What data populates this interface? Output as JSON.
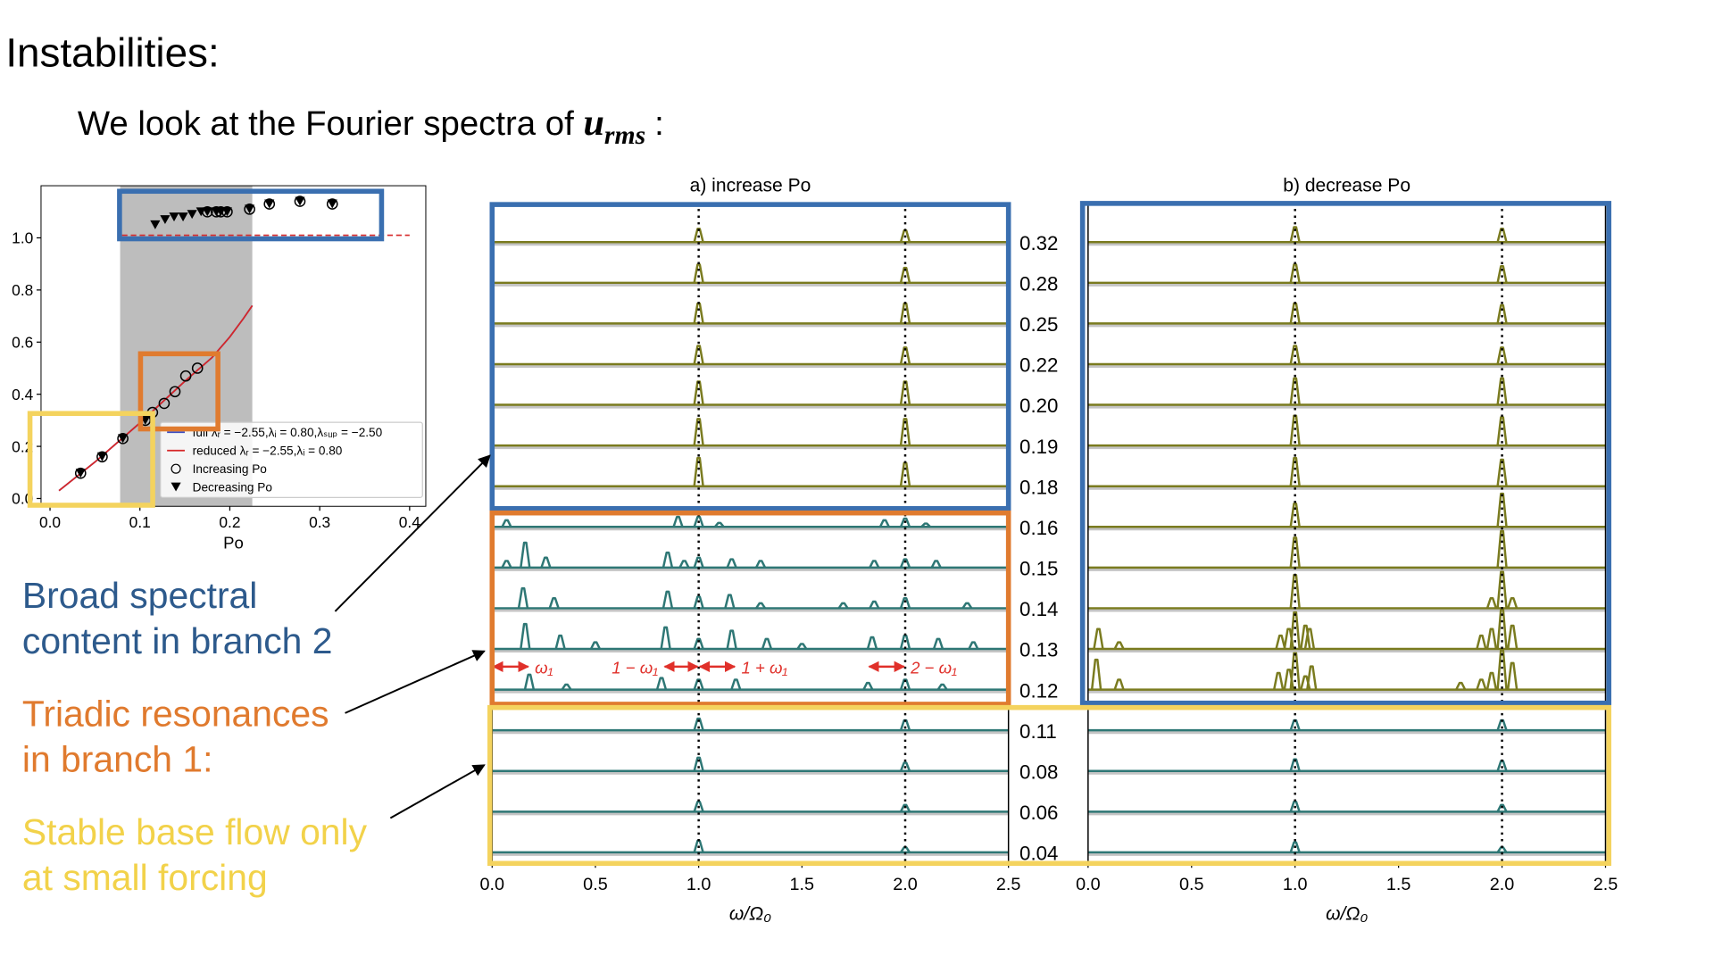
{
  "title": "Instabilities:",
  "subtitle": {
    "text": "We look at the Fourier spectra of",
    "symbol": "u",
    "subscript": "rms",
    "end": ":"
  },
  "notes": [
    {
      "lines": [
        "Broad spectral",
        "content in branch 2"
      ],
      "color": "#2d5a8c"
    },
    {
      "lines": [
        "Triadic resonances",
        "in branch 1:"
      ],
      "color": "#e07a2e"
    },
    {
      "lines": [
        "Stable base flow only",
        "at small forcing"
      ],
      "color": "#f2d24a"
    }
  ],
  "chart_data": [
    {
      "type": "scatter",
      "xlabel": "Po",
      "xlim": [
        -0.01,
        0.418
      ],
      "ylim": [
        -0.03,
        1.2
      ],
      "xticks": [
        {
          "value": 0,
          "label": "0.0"
        },
        0.1,
        0.2,
        0.3,
        0.4
      ],
      "yticks": [
        {
          "value": 0,
          "label": "0.0"
        },
        0.2,
        0.4,
        0.6,
        0.8,
        {
          "value": 1,
          "label": "1.0"
        }
      ],
      "shaded_x": [
        0.078,
        0.225
      ],
      "shade_color": "#bdbdbd",
      "ref_line": {
        "y": 1.01,
        "x": [
          0.08,
          0.4
        ],
        "color": "#d62728"
      },
      "legend": "lower right",
      "series": [
        {
          "name": "full λᵣ = −2.55,λᵢ = 0.80,λₛᵤₚ = −2.50",
          "kind": "line",
          "color": "#3b4cc0",
          "x": [
            0.01,
            0.05,
            0.1,
            0.15,
            0.18,
            0.2,
            0.215,
            0.225
          ],
          "values": [
            0.03,
            0.14,
            0.29,
            0.45,
            0.54,
            0.62,
            0.69,
            0.74
          ]
        },
        {
          "name": "reduced λᵣ = −2.55,λᵢ = 0.80",
          "kind": "line",
          "color": "#d62728",
          "x": [
            0.01,
            0.05,
            0.1,
            0.15,
            0.18,
            0.2,
            0.215,
            0.225
          ],
          "values": [
            0.03,
            0.14,
            0.29,
            0.45,
            0.54,
            0.62,
            0.69,
            0.74
          ]
        },
        {
          "name": "Increasing Po",
          "kind": "circle",
          "color": "#000000",
          "x": [
            0.034,
            0.058,
            0.081,
            0.106,
            0.114,
            0.127,
            0.139,
            0.151,
            0.164,
            0.175,
            0.185,
            0.19,
            0.197,
            0.222,
            0.244,
            0.278,
            0.314
          ],
          "values": [
            0.097,
            0.16,
            0.23,
            0.3,
            0.33,
            0.365,
            0.41,
            0.47,
            0.5,
            1.1,
            1.1,
            1.1,
            1.1,
            1.11,
            1.13,
            1.14,
            1.13
          ]
        },
        {
          "name": "Decreasing Po",
          "kind": "triangle",
          "color": "#000000",
          "x": [
            0.034,
            0.058,
            0.081,
            0.106,
            0.117,
            0.128,
            0.138,
            0.148,
            0.158,
            0.168,
            0.175,
            0.185,
            0.19,
            0.197,
            0.222,
            0.244,
            0.278,
            0.314
          ],
          "values": [
            0.097,
            0.16,
            0.23,
            0.3,
            1.05,
            1.07,
            1.08,
            1.08,
            1.09,
            1.1,
            1.1,
            1.1,
            1.1,
            1.1,
            1.11,
            1.13,
            1.14,
            1.13
          ]
        }
      ]
    },
    {
      "type": "spectra",
      "title": "a) increase Po",
      "xlabel": "ω/Ω₀",
      "xlim": [
        0,
        2.5
      ],
      "xticks": [
        {
          "value": 0,
          "label": "0.0"
        },
        0.5,
        {
          "value": 1,
          "label": "1.0"
        },
        1.5,
        {
          "value": 2,
          "label": "2.0"
        },
        2.5
      ],
      "vlines": [
        1,
        2
      ],
      "series": [
        {
          "name": "0.32",
          "color": "#7a7b1f",
          "peaks_x": [
            1,
            2
          ],
          "peaks_h": [
            0.4,
            0.35
          ]
        },
        {
          "name": "0.28",
          "color": "#7a7b1f",
          "peaks_x": [
            1,
            2
          ],
          "peaks_h": [
            0.55,
            0.45
          ]
        },
        {
          "name": "0.25",
          "color": "#7a7b1f",
          "peaks_x": [
            1,
            2
          ],
          "peaks_h": [
            0.6,
            0.6
          ]
        },
        {
          "name": "0.22",
          "color": "#7a7b1f",
          "peaks_x": [
            1,
            2
          ],
          "peaks_h": [
            0.55,
            0.5
          ]
        },
        {
          "name": "0.20",
          "color": "#7a7b1f",
          "peaks_x": [
            1,
            2
          ],
          "peaks_h": [
            0.7,
            0.7
          ]
        },
        {
          "name": "0.19",
          "color": "#7a7b1f",
          "peaks_x": [
            1,
            2
          ],
          "peaks_h": [
            0.8,
            0.8
          ]
        },
        {
          "name": "0.18",
          "color": "#7a7b1f",
          "peaks_x": [
            1,
            2
          ],
          "peaks_h": [
            0.85,
            0.7
          ]
        },
        {
          "name": "0.16",
          "color": "#2e7775",
          "peaks_x": [
            0.07,
            0.9,
            1,
            1.1,
            1.9,
            2,
            2.1
          ],
          "peaks_h": [
            0.2,
            0.3,
            0.3,
            0.12,
            0.2,
            0.25,
            0.1
          ]
        },
        {
          "name": "0.15",
          "color": "#2e7775",
          "peaks_x": [
            0.07,
            0.16,
            0.26,
            0.85,
            0.93,
            1,
            1.16,
            1.3,
            1.85,
            2,
            2.15
          ],
          "peaks_h": [
            0.2,
            0.75,
            0.3,
            0.45,
            0.2,
            0.3,
            0.25,
            0.2,
            0.2,
            0.25,
            0.2
          ]
        },
        {
          "name": "0.14",
          "color": "#2e7775",
          "peaks_x": [
            0.15,
            0.3,
            0.85,
            1,
            1.15,
            1.3,
            1.7,
            1.85,
            2,
            2.3
          ],
          "peaks_h": [
            0.6,
            0.3,
            0.5,
            0.35,
            0.4,
            0.15,
            0.15,
            0.2,
            0.3,
            0.15
          ]
        },
        {
          "name": "0.13",
          "color": "#2e7775",
          "peaks_x": [
            0.16,
            0.33,
            0.5,
            0.84,
            1,
            1.16,
            1.33,
            1.5,
            1.84,
            2,
            2.16,
            2.33
          ],
          "peaks_h": [
            0.75,
            0.4,
            0.2,
            0.65,
            0.3,
            0.55,
            0.3,
            0.15,
            0.35,
            0.4,
            0.3,
            0.2
          ]
        },
        {
          "name": "0.12",
          "color": "#2e7775",
          "peaks_x": [
            0.18,
            0.36,
            0.82,
            1,
            1.18,
            1.82,
            2,
            2.18
          ],
          "peaks_h": [
            0.45,
            0.15,
            0.35,
            0.3,
            0.3,
            0.2,
            0.3,
            0.15
          ]
        },
        {
          "name": "0.11",
          "color": "#2e7775",
          "peaks_x": [
            1,
            2
          ],
          "peaks_h": [
            0.35,
            0.3
          ]
        },
        {
          "name": "0.08",
          "color": "#2e7775",
          "peaks_x": [
            1,
            2
          ],
          "peaks_h": [
            0.4,
            0.25
          ]
        },
        {
          "name": "0.06",
          "color": "#2e7775",
          "peaks_x": [
            1,
            2
          ],
          "peaks_h": [
            0.3,
            0.2
          ]
        },
        {
          "name": "0.04",
          "color": "#2e7775",
          "peaks_x": [
            1,
            2
          ],
          "peaks_h": [
            0.35,
            0.15
          ]
        }
      ],
      "annotations": [
        {
          "text": "ω₁",
          "x0": 0,
          "x1": 0.18
        },
        {
          "text": "1 − ω₁",
          "x0": 0.83,
          "x1": 1
        },
        {
          "text": "1 + ω₁",
          "x0": 1,
          "x1": 1.18
        },
        {
          "text": "2 − ω₁",
          "x0": 1.82,
          "x1": 2
        }
      ],
      "annotation_color": "#e0302a"
    },
    {
      "type": "spectra",
      "title": "b) decrease Po",
      "xlabel": "ω/Ω₀",
      "xlim": [
        0,
        2.5
      ],
      "xticks": [
        {
          "value": 0,
          "label": "0.0"
        },
        0.5,
        {
          "value": 1,
          "label": "1.0"
        },
        1.5,
        {
          "value": 2,
          "label": "2.0"
        },
        2.5
      ],
      "vlines": [
        1,
        2
      ],
      "series": [
        {
          "color": "#7a7b1f",
          "peaks_x": [
            1,
            2
          ],
          "peaks_h": [
            0.45,
            0.4
          ]
        },
        {
          "color": "#7a7b1f",
          "peaks_x": [
            1,
            2
          ],
          "peaks_h": [
            0.55,
            0.5
          ]
        },
        {
          "color": "#7a7b1f",
          "peaks_x": [
            1,
            2
          ],
          "peaks_h": [
            0.6,
            0.55
          ]
        },
        {
          "color": "#7a7b1f",
          "peaks_x": [
            1,
            2
          ],
          "peaks_h": [
            0.55,
            0.5
          ]
        },
        {
          "color": "#7a7b1f",
          "peaks_x": [
            1,
            2
          ],
          "peaks_h": [
            0.8,
            0.8
          ]
        },
        {
          "color": "#7a7b1f",
          "peaks_x": [
            1,
            2
          ],
          "peaks_h": [
            0.9,
            0.85
          ]
        },
        {
          "color": "#7a7b1f",
          "peaks_x": [
            1,
            2
          ],
          "peaks_h": [
            0.85,
            0.8
          ]
        },
        {
          "color": "#7a7b1f",
          "peaks_x": [
            1,
            2
          ],
          "peaks_h": [
            0.7,
            1
          ]
        },
        {
          "color": "#7a7b1f",
          "peaks_x": [
            1,
            2
          ],
          "peaks_h": [
            0.9,
            1.1
          ]
        },
        {
          "color": "#7a7b1f",
          "peaks_x": [
            1,
            1.95,
            2,
            2.05
          ],
          "peaks_h": [
            1,
            0.3,
            1.1,
            0.3
          ]
        },
        {
          "color": "#7a7b1f",
          "peaks_x": [
            0.05,
            0.15,
            0.93,
            0.97,
            1,
            1.05,
            1.07,
            1.9,
            1.95,
            2,
            2.05
          ],
          "peaks_h": [
            0.6,
            0.2,
            0.4,
            0.6,
            1.1,
            0.7,
            0.6,
            0.4,
            0.6,
            1.2,
            0.7
          ]
        },
        {
          "color": "#7a7b1f",
          "peaks_x": [
            0.04,
            0.15,
            0.92,
            0.97,
            1,
            1.05,
            1.08,
            1.8,
            1.9,
            1.95,
            2,
            2.05
          ],
          "peaks_h": [
            0.9,
            0.3,
            0.5,
            0.6,
            1.1,
            0.4,
            0.7,
            0.2,
            0.3,
            0.5,
            1.2,
            0.8
          ]
        },
        {
          "color": "#2e7775",
          "peaks_x": [
            1,
            2
          ],
          "peaks_h": [
            0.3,
            0.3
          ]
        },
        {
          "color": "#2e7775",
          "peaks_x": [
            1,
            2
          ],
          "peaks_h": [
            0.35,
            0.3
          ]
        },
        {
          "color": "#2e7775",
          "peaks_x": [
            1,
            2
          ],
          "peaks_h": [
            0.3,
            0.2
          ]
        },
        {
          "color": "#2e7775",
          "peaks_x": [
            1,
            2
          ],
          "peaks_h": [
            0.3,
            0.15
          ]
        }
      ]
    }
  ]
}
